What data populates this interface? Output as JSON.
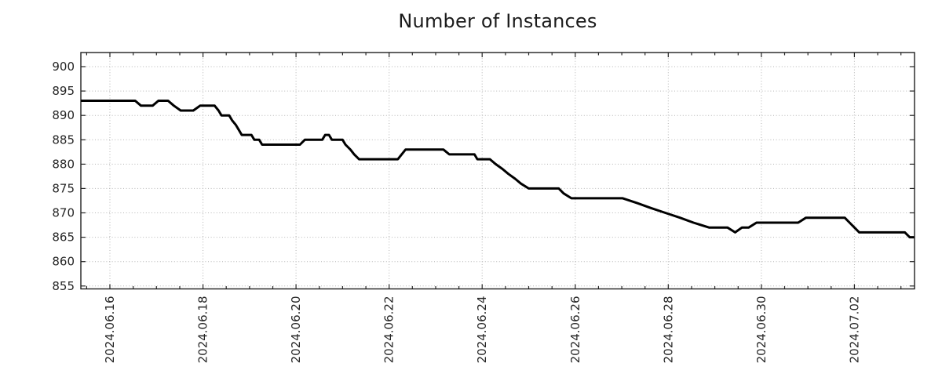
{
  "chart_data": {
    "type": "line",
    "title": "Number of Instances",
    "xlabel": "",
    "ylabel": "",
    "legend": "none",
    "grid": "dotted, at major ticks only",
    "x_range": [
      "2024-06-15 09:00",
      "2024-07-03 07:00"
    ],
    "ylim": [
      854.4,
      902.9
    ],
    "y_ticks": [
      855,
      860,
      865,
      870,
      875,
      880,
      885,
      890,
      895,
      900
    ],
    "y_tick_labels": [
      "855",
      "860",
      "865",
      "870",
      "875",
      "880",
      "885",
      "890",
      "895",
      "900"
    ],
    "x_major_ticks": [
      "2024-06-16",
      "2024-06-18",
      "2024-06-20",
      "2024-06-22",
      "2024-06-24",
      "2024-06-26",
      "2024-06-28",
      "2024-06-30",
      "2024-07-02"
    ],
    "x_tick_labels": [
      "2024.06.16",
      "2024.06.18",
      "2024.06.20",
      "2024.06.22",
      "2024.06.24",
      "2024.06.26",
      "2024.06.28",
      "2024.06.30",
      "2024.07.02"
    ],
    "x_minor_tick_hours": 12,
    "series": [
      {
        "name": "instances",
        "points": [
          [
            "2024-06-15 09:00",
            893
          ],
          [
            "2024-06-16 13:00",
            893
          ],
          [
            "2024-06-16 16:00",
            892
          ],
          [
            "2024-06-16 22:00",
            892
          ],
          [
            "2024-06-17 01:00",
            893
          ],
          [
            "2024-06-17 06:00",
            893
          ],
          [
            "2024-06-17 09:00",
            892
          ],
          [
            "2024-06-17 12:30",
            891
          ],
          [
            "2024-06-17 19:00",
            891
          ],
          [
            "2024-06-17 22:30",
            892
          ],
          [
            "2024-06-18 06:00",
            892
          ],
          [
            "2024-06-18 08:00",
            891
          ],
          [
            "2024-06-18 09:30",
            890
          ],
          [
            "2024-06-18 13:30",
            890
          ],
          [
            "2024-06-18 15:00",
            889
          ],
          [
            "2024-06-18 17:00",
            888
          ],
          [
            "2024-06-18 18:30",
            887
          ],
          [
            "2024-06-18 20:00",
            886
          ],
          [
            "2024-06-19 01:00",
            886
          ],
          [
            "2024-06-19 02:30",
            885
          ],
          [
            "2024-06-19 05:00",
            885
          ],
          [
            "2024-06-19 06:30",
            884
          ],
          [
            "2024-06-20 02:00",
            884
          ],
          [
            "2024-06-20 04:30",
            885
          ],
          [
            "2024-06-20 13:30",
            885
          ],
          [
            "2024-06-20 15:00",
            886
          ],
          [
            "2024-06-20 17:00",
            886
          ],
          [
            "2024-06-20 18:30",
            885
          ],
          [
            "2024-06-21 00:00",
            885
          ],
          [
            "2024-06-21 01:30",
            884
          ],
          [
            "2024-06-21 04:00",
            883
          ],
          [
            "2024-06-21 06:00",
            882
          ],
          [
            "2024-06-21 08:30",
            881
          ],
          [
            "2024-06-22 04:30",
            881
          ],
          [
            "2024-06-22 06:30",
            882
          ],
          [
            "2024-06-22 08:30",
            883
          ],
          [
            "2024-06-23 04:00",
            883
          ],
          [
            "2024-06-23 07:00",
            882
          ],
          [
            "2024-06-23 20:00",
            882
          ],
          [
            "2024-06-23 21:30",
            881
          ],
          [
            "2024-06-24 04:00",
            881
          ],
          [
            "2024-06-24 07:00",
            880
          ],
          [
            "2024-06-24 10:30",
            879
          ],
          [
            "2024-06-24 13:30",
            878
          ],
          [
            "2024-06-24 17:00",
            877
          ],
          [
            "2024-06-24 20:00",
            876
          ],
          [
            "2024-06-25 00:00",
            875
          ],
          [
            "2024-06-25 15:30",
            875
          ],
          [
            "2024-06-25 18:00",
            874
          ],
          [
            "2024-06-25 22:00",
            873
          ],
          [
            "2024-06-27 00:30",
            873
          ],
          [
            "2024-06-27 08:00",
            872
          ],
          [
            "2024-06-27 15:00",
            871
          ],
          [
            "2024-06-27 22:30",
            870
          ],
          [
            "2024-06-28 06:00",
            869
          ],
          [
            "2024-06-28 13:00",
            868
          ],
          [
            "2024-06-28 21:00",
            867
          ],
          [
            "2024-06-29 06:30",
            867
          ],
          [
            "2024-06-29 10:30",
            866
          ],
          [
            "2024-06-29 14:00",
            867
          ],
          [
            "2024-06-29 17:30",
            867
          ],
          [
            "2024-06-29 21:30",
            868
          ],
          [
            "2024-06-30 19:00",
            868
          ],
          [
            "2024-06-30 23:00",
            869
          ],
          [
            "2024-07-01 19:00",
            869
          ],
          [
            "2024-07-01 21:30",
            868
          ],
          [
            "2024-07-02 00:00",
            867
          ],
          [
            "2024-07-02 02:30",
            866
          ],
          [
            "2024-07-03 02:00",
            866
          ],
          [
            "2024-07-03 04:30",
            865
          ],
          [
            "2024-07-03 06:45",
            865
          ]
        ]
      }
    ]
  },
  "style": {
    "background": "#ffffff",
    "line_color": "#000000",
    "grid_color": "#b5b5b5",
    "axis_color": "#262626",
    "text_color": "#262626"
  }
}
